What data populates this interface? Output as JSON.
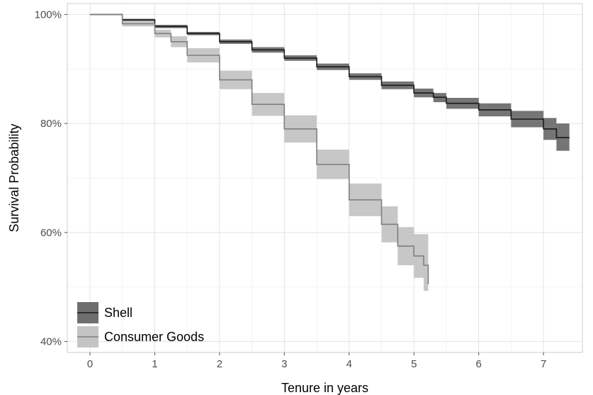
{
  "chart_data": {
    "type": "line",
    "subtype": "kaplan-meier survival curve with confidence bands",
    "title": "",
    "xlabel": "Tenure in years",
    "ylabel": "Survival Probability",
    "xlim": [
      -0.35,
      7.6
    ],
    "ylim": [
      38,
      102
    ],
    "x_ticks": [
      0,
      1,
      2,
      3,
      4,
      5,
      6,
      7
    ],
    "x_tick_labels": [
      "0",
      "1",
      "2",
      "3",
      "4",
      "5",
      "6",
      "7"
    ],
    "y_ticks": [
      40,
      60,
      80,
      100
    ],
    "y_tick_labels": [
      "40%",
      "60%",
      "80%",
      "100%"
    ],
    "grid": true,
    "legend_position": "bottom-left",
    "series": [
      {
        "name": "Shell",
        "line_color": "#1a1a1a",
        "band_color": "#6e6e6e",
        "points": [
          {
            "x": 0.0,
            "y": 100.0,
            "lower": 100.0,
            "upper": 100.0
          },
          {
            "x": 0.5,
            "y": 99.0,
            "lower": 98.8,
            "upper": 99.2
          },
          {
            "x": 1.0,
            "y": 97.8,
            "lower": 97.5,
            "upper": 98.1
          },
          {
            "x": 1.5,
            "y": 96.5,
            "lower": 96.2,
            "upper": 96.8
          },
          {
            "x": 2.0,
            "y": 95.0,
            "lower": 94.6,
            "upper": 95.4
          },
          {
            "x": 2.5,
            "y": 93.5,
            "lower": 93.0,
            "upper": 94.0
          },
          {
            "x": 3.0,
            "y": 92.0,
            "lower": 91.5,
            "upper": 92.5
          },
          {
            "x": 3.5,
            "y": 90.4,
            "lower": 89.8,
            "upper": 91.0
          },
          {
            "x": 4.0,
            "y": 88.6,
            "lower": 88.0,
            "upper": 89.2
          },
          {
            "x": 4.5,
            "y": 87.0,
            "lower": 86.3,
            "upper": 87.7
          },
          {
            "x": 5.0,
            "y": 85.6,
            "lower": 84.8,
            "upper": 86.4
          },
          {
            "x": 5.3,
            "y": 84.8,
            "lower": 83.9,
            "upper": 85.6
          },
          {
            "x": 5.5,
            "y": 83.7,
            "lower": 82.7,
            "upper": 84.7
          },
          {
            "x": 6.0,
            "y": 82.5,
            "lower": 81.3,
            "upper": 83.7
          },
          {
            "x": 6.5,
            "y": 80.8,
            "lower": 79.3,
            "upper": 82.3
          },
          {
            "x": 7.0,
            "y": 79.0,
            "lower": 77.0,
            "upper": 81.0
          },
          {
            "x": 7.2,
            "y": 77.4,
            "lower": 75.0,
            "upper": 80.0
          },
          {
            "x": 7.4,
            "y": 77.4,
            "lower": 75.0,
            "upper": 80.0
          }
        ]
      },
      {
        "name": "Consumer Goods",
        "line_color": "#7f7f7f",
        "band_color": "#c4c4c4",
        "points": [
          {
            "x": 0.0,
            "y": 100.0,
            "lower": 100.0,
            "upper": 100.0
          },
          {
            "x": 0.5,
            "y": 98.3,
            "lower": 97.8,
            "upper": 98.8
          },
          {
            "x": 1.0,
            "y": 96.5,
            "lower": 95.8,
            "upper": 97.2
          },
          {
            "x": 1.25,
            "y": 95.0,
            "lower": 94.0,
            "upper": 96.0
          },
          {
            "x": 1.5,
            "y": 92.5,
            "lower": 91.2,
            "upper": 93.8
          },
          {
            "x": 2.0,
            "y": 88.0,
            "lower": 86.3,
            "upper": 89.7
          },
          {
            "x": 2.5,
            "y": 83.5,
            "lower": 81.4,
            "upper": 85.6
          },
          {
            "x": 3.0,
            "y": 79.0,
            "lower": 76.5,
            "upper": 81.5
          },
          {
            "x": 3.5,
            "y": 72.5,
            "lower": 69.8,
            "upper": 75.2
          },
          {
            "x": 4.0,
            "y": 66.0,
            "lower": 63.0,
            "upper": 69.0
          },
          {
            "x": 4.5,
            "y": 61.5,
            "lower": 58.2,
            "upper": 64.8
          },
          {
            "x": 4.75,
            "y": 57.5,
            "lower": 54.0,
            "upper": 61.0
          },
          {
            "x": 5.0,
            "y": 55.7,
            "lower": 51.7,
            "upper": 59.7
          },
          {
            "x": 5.15,
            "y": 54.0,
            "lower": 49.3,
            "upper": 59.7
          },
          {
            "x": 5.22,
            "y": 50.5,
            "lower": 43.0,
            "upper": 59.7
          }
        ]
      }
    ]
  }
}
